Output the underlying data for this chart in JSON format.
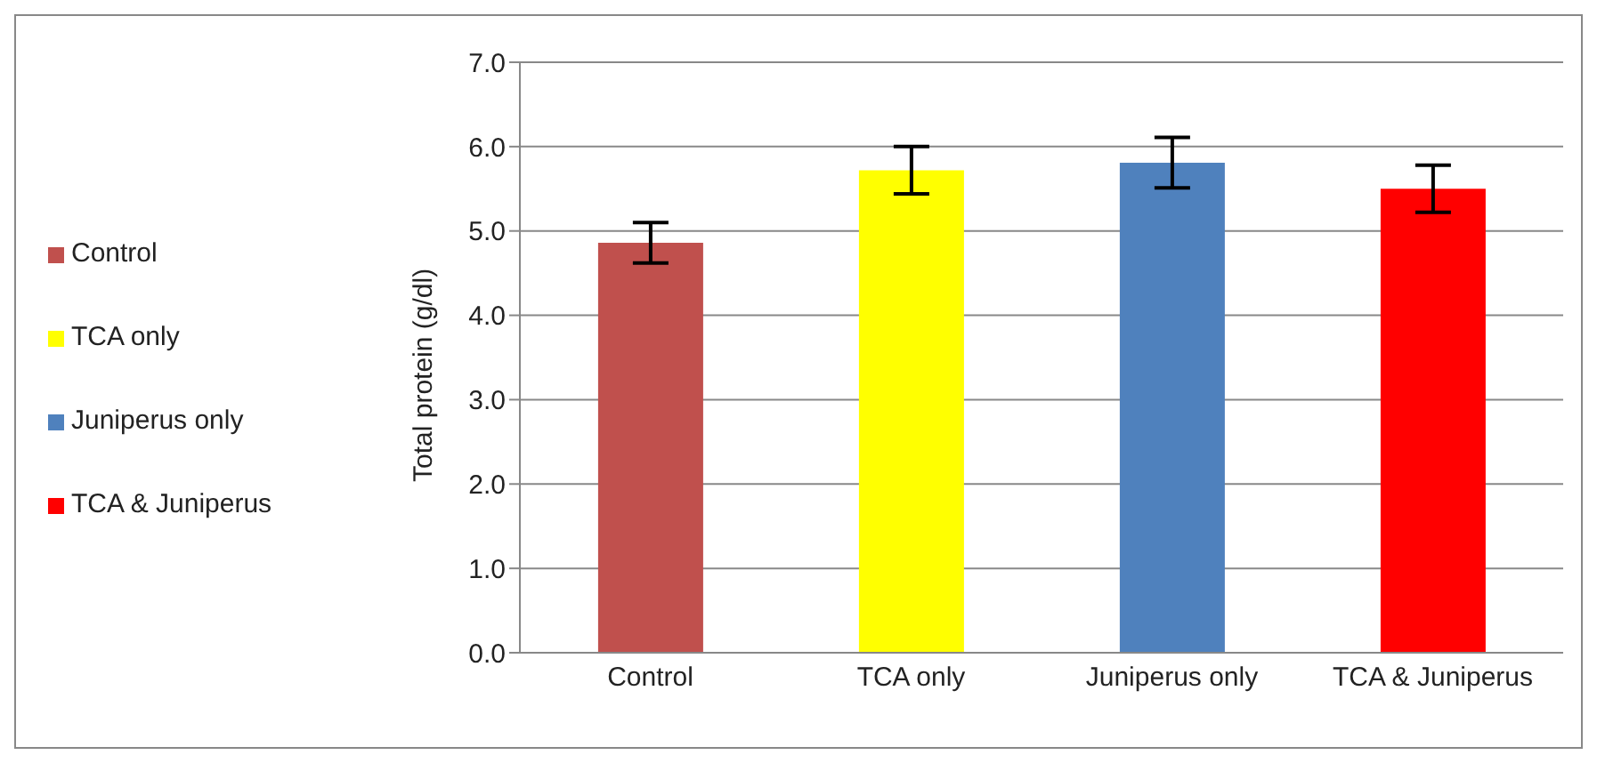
{
  "chart_data": {
    "type": "bar",
    "ylabel": "Total protein (g/dl)",
    "categories": [
      "Control",
      "TCA only",
      "Juniperus only",
      "TCA & Juniperus"
    ],
    "series": [
      {
        "name": "Control",
        "color": "#c0504d",
        "values": [
          4.86,
          null,
          null,
          null
        ],
        "errors": [
          0.24,
          null,
          null,
          null
        ]
      },
      {
        "name": "TCA only",
        "color": "#ffff00",
        "values": [
          null,
          5.72,
          null,
          null
        ],
        "errors": [
          null,
          0.28,
          null,
          null
        ]
      },
      {
        "name": "Juniperus only",
        "color": "#4f81bd",
        "values": [
          null,
          null,
          5.81,
          null
        ],
        "errors": [
          null,
          null,
          0.3,
          null
        ]
      },
      {
        "name": "TCA & Juniperus",
        "color": "#ff0000",
        "values": [
          null,
          null,
          null,
          5.5
        ],
        "errors": [
          null,
          null,
          null,
          0.28
        ]
      }
    ],
    "stacked": true,
    "ylim": [
      0,
      7
    ],
    "yticks": [
      {
        "value": 0,
        "label": "0.0"
      },
      {
        "value": 1,
        "label": "1.0"
      },
      {
        "value": 2,
        "label": "2.0"
      },
      {
        "value": 3,
        "label": "3.0"
      },
      {
        "value": 4,
        "label": "4.0"
      },
      {
        "value": 5,
        "label": "5.0"
      },
      {
        "value": 6,
        "label": "6.0"
      },
      {
        "value": 7,
        "label": "7.0"
      }
    ],
    "grid": "y",
    "legend": "left"
  }
}
